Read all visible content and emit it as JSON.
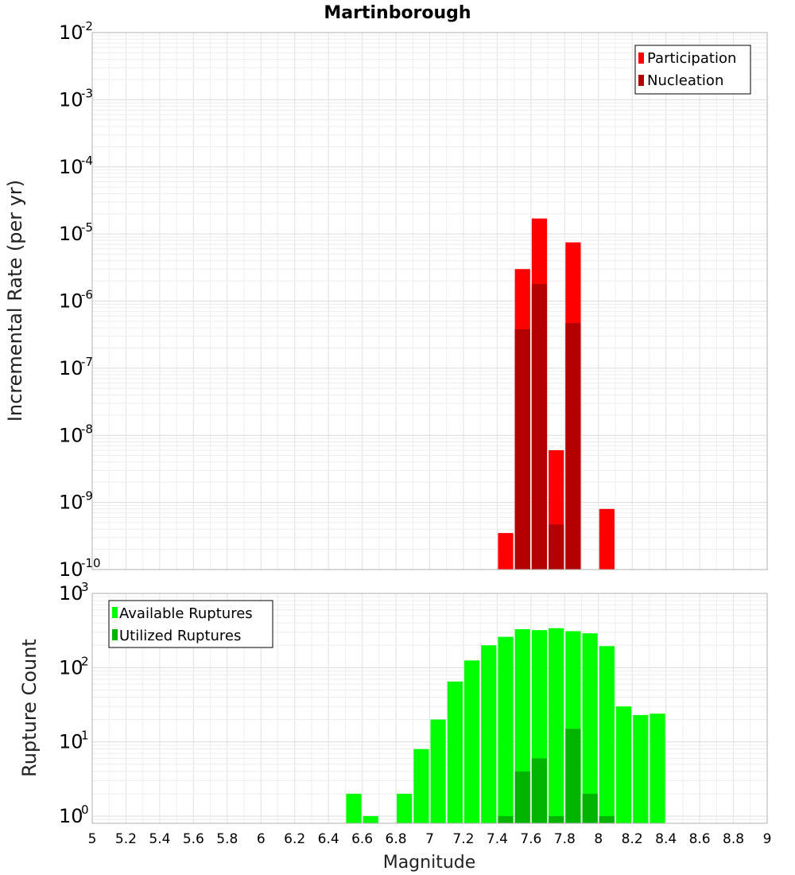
{
  "chart_data": [
    {
      "type": "bar",
      "title": "Martinborough",
      "ylabel": "Incremental Rate (per yr)",
      "xlabel": "",
      "xlim": [
        5,
        9
      ],
      "ylim": [
        1e-10,
        0.01
      ],
      "yscale": "log",
      "grid": true,
      "legend_position": "top-right",
      "bar_width": 0.1,
      "y_tick_base": "10",
      "y_tick_exponents": [
        "-10",
        "-9",
        "-8",
        "-7",
        "-6",
        "-5",
        "-4",
        "-3",
        "-2"
      ],
      "series": [
        {
          "name": "Participation",
          "color": "#ff0000",
          "x": [
            7.45,
            7.55,
            7.65,
            7.75,
            7.85,
            8.05
          ],
          "values": [
            3.5e-10,
            3e-06,
            1.7e-05,
            6e-09,
            7.5e-06,
            8e-10
          ]
        },
        {
          "name": "Nucleation",
          "color": "#b40000",
          "x": [
            7.55,
            7.65,
            7.75,
            7.85
          ],
          "values": [
            3.8e-07,
            1.8e-06,
            4.7e-10,
            4.7e-07
          ]
        }
      ]
    },
    {
      "type": "bar",
      "title": "",
      "ylabel": "Rupture Count",
      "xlabel": "Magnitude",
      "xlim": [
        5,
        9
      ],
      "ylim": [
        0.8,
        1000
      ],
      "yscale": "log",
      "grid": true,
      "legend_position": "top-left",
      "bar_width": 0.1,
      "x_ticks": [
        "5",
        "5.2",
        "5.4",
        "5.6",
        "5.8",
        "6",
        "6.2",
        "6.4",
        "6.6",
        "6.8",
        "7",
        "7.2",
        "7.4",
        "7.6",
        "7.8",
        "8",
        "8.2",
        "8.4",
        "8.6",
        "8.8",
        "9"
      ],
      "y_tick_base": "10",
      "y_tick_exponents": [
        "0",
        "1",
        "2",
        "3"
      ],
      "series": [
        {
          "name": "Available Ruptures",
          "color": "#00ff00",
          "x": [
            6.55,
            6.65,
            6.85,
            6.95,
            7.05,
            7.15,
            7.25,
            7.35,
            7.45,
            7.55,
            7.65,
            7.75,
            7.85,
            7.95,
            8.05,
            8.15,
            8.25,
            8.35
          ],
          "values": [
            2,
            1,
            2,
            8,
            20,
            65,
            125,
            200,
            260,
            330,
            320,
            340,
            310,
            290,
            195,
            30,
            23,
            24
          ]
        },
        {
          "name": "Utilized Ruptures",
          "color": "#00b400",
          "x": [
            7.45,
            7.55,
            7.65,
            7.75,
            7.85,
            7.95,
            8.05
          ],
          "values": [
            1,
            4,
            6,
            1,
            15,
            2,
            1
          ]
        }
      ]
    }
  ]
}
